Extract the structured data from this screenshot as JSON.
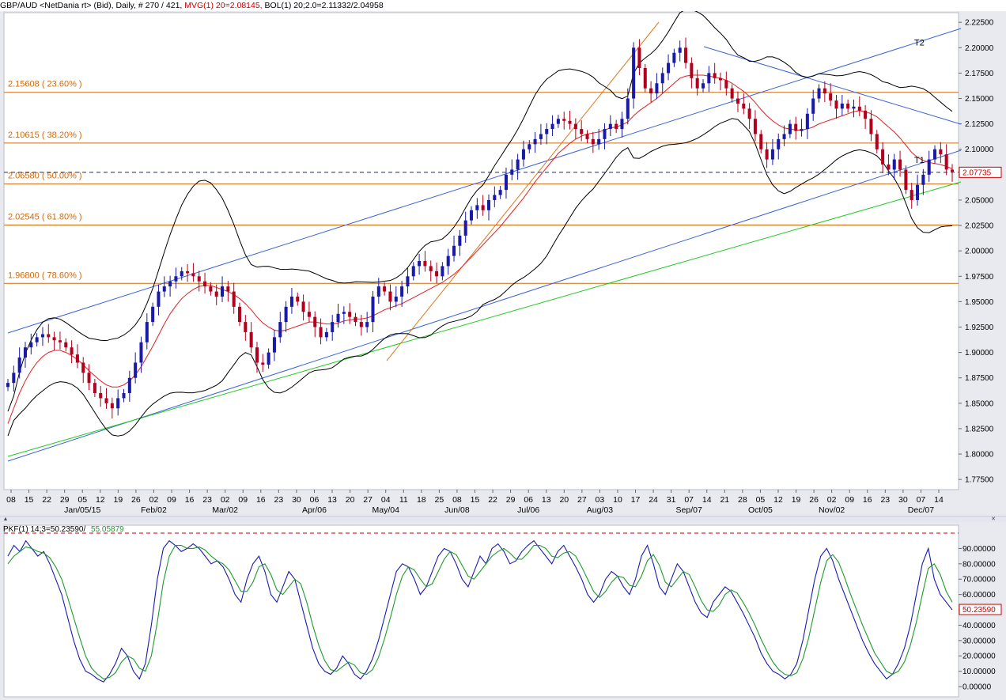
{
  "header": {
    "symbol_text": "GBP/AUD <NetDania rt> (Bid), Daily, # 270 / 421,",
    "mvg_text": "MVG(1) 20=2.08145,",
    "bol_text": "BOL(1) 20;2.0=2.11332/2.04958"
  },
  "osc_header": {
    "label_text": "PKF(1) 14;3=50.23590/",
    "value2_text": "55.05879"
  },
  "colors": {
    "up_candle": "#1a1aa8",
    "down_candle": "#b3001e",
    "ma": "#e02020",
    "bollinger": "#000000",
    "channel": "#3a64d8",
    "fib": "#cc6a10",
    "support": "#22c822",
    "osc_k": "#1a1ab0",
    "osc_d": "#1e9a2a",
    "grid_bg": "#ffffff",
    "axis_bg": "#e8eaf0"
  },
  "chart_data": [
    {
      "type": "candlestick",
      "title": "GBP/AUD Daily",
      "ylim": [
        1.765,
        2.2345
      ],
      "y_ticks": [
        "2.22500",
        "2.20000",
        "2.17500",
        "2.15000",
        "2.12500",
        "2.10000",
        "2.07500",
        "2.05000",
        "2.02500",
        "2.00000",
        "1.97500",
        "1.95000",
        "1.92500",
        "1.90000",
        "1.87500",
        "1.85000",
        "1.82500",
        "1.80000",
        "1.77500"
      ],
      "x_day_labels": [
        "08",
        "15",
        "22",
        "29",
        "05",
        "12",
        "19",
        "26",
        "02",
        "09",
        "16",
        "23",
        "02",
        "09",
        "16",
        "23",
        "30",
        "06",
        "13",
        "20",
        "27",
        "04",
        "11",
        "18",
        "25",
        "08",
        "15",
        "22",
        "29",
        "06",
        "13",
        "20",
        "27",
        "03",
        "10",
        "17",
        "24",
        "31",
        "07",
        "14",
        "21",
        "28",
        "05",
        "12",
        "19",
        "26",
        "02",
        "09",
        "16",
        "23",
        "30",
        "07",
        "14"
      ],
      "x_month_labels": [
        "Jan/05/15",
        "Feb/02",
        "Mar/02",
        "Apr/06",
        "May/04",
        "Jun/08",
        "Jul/06",
        "Aug/03",
        "Sep/07",
        "Oct/05",
        "Nov/02",
        "Dec/07"
      ],
      "last_price": "2.07735",
      "fib_levels": [
        {
          "label": "2.15608 ( 23.60% )",
          "value": 2.15608
        },
        {
          "label": "2.10615 ( 38.20% )",
          "value": 2.10615
        },
        {
          "label": "2.06580 ( 50.00% )",
          "value": 2.0658
        },
        {
          "label": "2.02545 ( 61.80% )",
          "value": 2.02545
        },
        {
          "label": "1.96800 ( 78.60% )",
          "value": 1.968
        }
      ],
      "annotations": [
        "T1",
        "T2"
      ],
      "closes": [
        1.87,
        1.88,
        1.895,
        1.905,
        1.91,
        1.915,
        1.918,
        1.915,
        1.912,
        1.91,
        1.905,
        1.898,
        1.89,
        1.88,
        1.87,
        1.86,
        1.855,
        1.85,
        1.845,
        1.855,
        1.86,
        1.875,
        1.89,
        1.91,
        1.93,
        1.945,
        1.96,
        1.965,
        1.97,
        1.975,
        1.98,
        1.978,
        1.975,
        1.97,
        1.965,
        1.96,
        1.955,
        1.965,
        1.96,
        1.945,
        1.93,
        1.92,
        1.905,
        1.89,
        1.888,
        1.9,
        1.915,
        1.93,
        1.945,
        1.955,
        1.95,
        1.94,
        1.935,
        1.925,
        1.915,
        1.92,
        1.93,
        1.938,
        1.94,
        1.935,
        1.93,
        1.925,
        1.93,
        1.955,
        1.965,
        1.96,
        1.95,
        1.955,
        1.965,
        1.975,
        1.985,
        1.99,
        1.985,
        1.98,
        1.975,
        1.985,
        1.995,
        2.005,
        2.015,
        2.03,
        2.04,
        2.045,
        2.04,
        2.05,
        2.055,
        2.06,
        2.075,
        2.08,
        2.09,
        2.1,
        2.105,
        2.11,
        2.115,
        2.12,
        2.125,
        2.13,
        2.128,
        2.125,
        2.12,
        2.115,
        2.11,
        2.105,
        2.11,
        2.12,
        2.125,
        2.12,
        2.13,
        2.15,
        2.2,
        2.18,
        2.16,
        2.155,
        2.165,
        2.175,
        2.185,
        2.195,
        2.2,
        2.185,
        2.17,
        2.16,
        2.165,
        2.175,
        2.17,
        2.168,
        2.16,
        2.15,
        2.145,
        2.14,
        2.13,
        2.115,
        2.1,
        2.09,
        2.1,
        2.11,
        2.115,
        2.125,
        2.118,
        2.12,
        2.135,
        2.15,
        2.16,
        2.155,
        2.148,
        2.14,
        2.145,
        2.14,
        2.142,
        2.138,
        2.13,
        2.115,
        2.1,
        2.085,
        2.08,
        2.09,
        2.08,
        2.06,
        2.05,
        2.065,
        2.075,
        2.09,
        2.1,
        2.095,
        2.08,
        2.078
      ],
      "ma20": [
        1.83,
        1.845,
        1.86,
        1.872,
        1.882,
        1.89,
        1.896,
        1.9,
        1.902,
        1.902,
        1.9,
        1.897,
        1.893,
        1.888,
        1.882,
        1.877,
        1.872,
        1.868,
        1.866,
        1.866,
        1.868,
        1.872,
        1.878,
        1.886,
        1.896,
        1.906,
        1.917,
        1.928,
        1.938,
        1.946,
        1.953,
        1.958,
        1.962,
        1.965,
        1.966,
        1.966,
        1.964,
        1.962,
        1.96,
        1.957,
        1.953,
        1.948,
        1.942,
        1.935,
        1.929,
        1.925,
        1.922,
        1.921,
        1.922,
        1.924,
        1.926,
        1.928,
        1.93,
        1.93,
        1.929,
        1.928,
        1.928,
        1.929,
        1.931,
        1.932,
        1.933,
        1.933,
        1.934,
        1.936,
        1.939,
        1.942,
        1.944,
        1.946,
        1.948,
        1.951,
        1.954,
        1.957,
        1.96,
        1.963,
        1.966,
        1.969,
        1.973,
        1.977,
        1.982,
        1.988,
        1.994,
        2.0,
        2.006,
        2.012,
        2.018,
        2.024,
        2.031,
        2.038,
        2.045,
        2.052,
        2.06,
        2.068,
        2.075,
        2.082,
        2.089,
        2.096,
        2.101,
        2.106,
        2.11,
        2.113,
        2.115,
        2.116,
        2.117,
        2.119,
        2.121,
        2.122,
        2.124,
        2.127,
        2.133,
        2.138,
        2.142,
        2.146,
        2.15,
        2.155,
        2.16,
        2.165,
        2.17,
        2.172,
        2.173,
        2.173,
        2.173,
        2.172,
        2.171,
        2.17,
        2.168,
        2.165,
        2.161,
        2.157,
        2.152,
        2.146,
        2.139,
        2.133,
        2.128,
        2.124,
        2.121,
        2.12,
        2.119,
        2.119,
        2.12,
        2.122,
        2.125,
        2.127,
        2.129,
        2.131,
        2.133,
        2.135,
        2.137,
        2.138,
        2.137,
        2.135,
        2.132,
        2.127,
        2.122,
        2.117,
        2.111,
        2.104,
        2.097,
        2.092,
        2.089,
        2.087,
        2.086,
        2.085,
        2.083,
        2.081
      ]
    },
    {
      "type": "line",
      "title": "PKF(1) 14;3",
      "ylim": [
        -1,
        100
      ],
      "y_ticks": [
        "90.00000",
        "80.00000",
        "70.00000",
        "60.00000",
        "50.00000",
        "40.00000",
        "30.00000",
        "20.00000",
        "10.00000",
        "0.00000"
      ],
      "last_value": "50.23590",
      "series": [
        {
          "name": "%K",
          "values": [
            85,
            92,
            88,
            95,
            90,
            85,
            88,
            80,
            70,
            60,
            45,
            30,
            18,
            10,
            8,
            5,
            3,
            8,
            15,
            25,
            20,
            10,
            5,
            15,
            40,
            70,
            90,
            95,
            92,
            88,
            90,
            93,
            90,
            85,
            80,
            82,
            78,
            70,
            60,
            55,
            70,
            80,
            85,
            75,
            60,
            55,
            65,
            75,
            70,
            55,
            40,
            25,
            15,
            10,
            8,
            12,
            20,
            15,
            8,
            5,
            10,
            18,
            30,
            45,
            60,
            75,
            80,
            78,
            70,
            60,
            65,
            75,
            85,
            90,
            88,
            80,
            70,
            65,
            75,
            85,
            80,
            90,
            93,
            88,
            80,
            82,
            88,
            92,
            95,
            90,
            85,
            80,
            88,
            92,
            85,
            78,
            70,
            60,
            55,
            60,
            70,
            75,
            72,
            65,
            60,
            70,
            85,
            92,
            80,
            65,
            60,
            70,
            80,
            75,
            65,
            55,
            48,
            45,
            55,
            60,
            65,
            62,
            55,
            48,
            40,
            32,
            22,
            15,
            10,
            8,
            5,
            8,
            15,
            30,
            50,
            70,
            85,
            90,
            82,
            70,
            60,
            50,
            40,
            30,
            22,
            15,
            10,
            5,
            8,
            15,
            25,
            40,
            60,
            80,
            90,
            70,
            60,
            55,
            50
          ]
        },
        {
          "name": "%D",
          "values": [
            80,
            85,
            88,
            91,
            90,
            88,
            87,
            84,
            78,
            70,
            58,
            45,
            32,
            20,
            12,
            8,
            5,
            6,
            9,
            16,
            20,
            18,
            12,
            10,
            20,
            42,
            68,
            85,
            92,
            92,
            90,
            90,
            91,
            89,
            85,
            82,
            80,
            76,
            69,
            62,
            62,
            68,
            78,
            80,
            73,
            63,
            60,
            65,
            70,
            67,
            55,
            40,
            27,
            17,
            11,
            10,
            13,
            16,
            14,
            9,
            8,
            11,
            19,
            31,
            45,
            60,
            72,
            78,
            76,
            70,
            65,
            67,
            75,
            83,
            88,
            86,
            79,
            72,
            70,
            75,
            80,
            85,
            88,
            90,
            87,
            83,
            83,
            87,
            92,
            92,
            90,
            85,
            84,
            87,
            88,
            85,
            78,
            70,
            62,
            58,
            62,
            68,
            72,
            71,
            66,
            65,
            72,
            82,
            86,
            79,
            68,
            65,
            70,
            75,
            73,
            65,
            56,
            50,
            49,
            53,
            60,
            63,
            61,
            55,
            48,
            40,
            31,
            23,
            16,
            11,
            8,
            7,
            9,
            18,
            32,
            50,
            68,
            82,
            86,
            81,
            71,
            60,
            50,
            40,
            31,
            22,
            16,
            10,
            8,
            10,
            16,
            27,
            42,
            60,
            77,
            80,
            73,
            62,
            55
          ]
        }
      ]
    }
  ]
}
